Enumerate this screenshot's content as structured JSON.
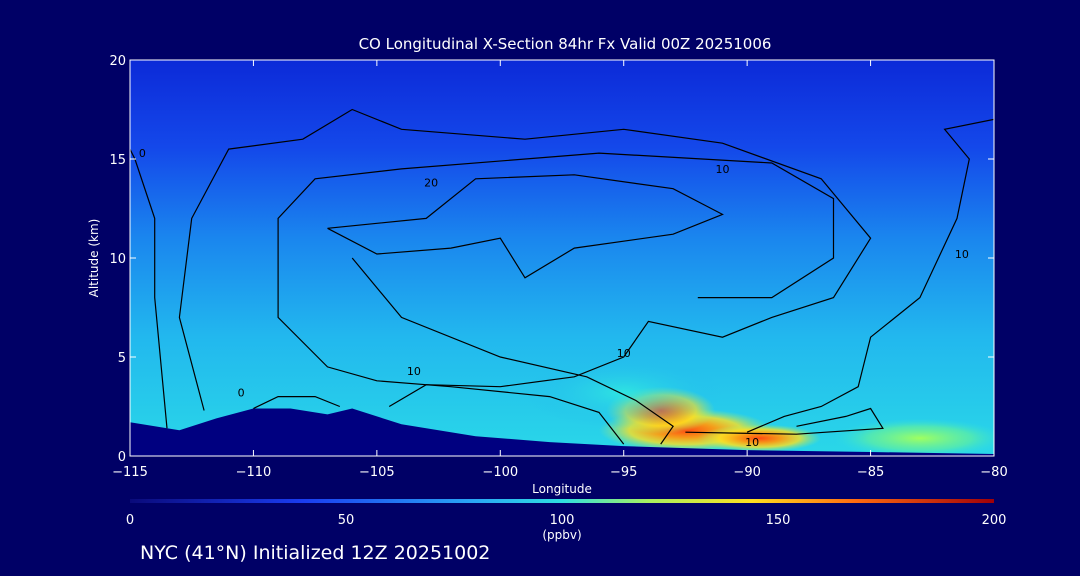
{
  "chart_data": {
    "type": "heatmap",
    "title": "CO Longitudinal X-Section 84hr  Fx Valid 00Z 20251006",
    "xlabel": "Longitude",
    "ylabel": "Altitude (km)",
    "xlim": [
      -115,
      -80
    ],
    "ylim": [
      0,
      20
    ],
    "xticks": [
      -115,
      -110,
      -105,
      -100,
      -95,
      -90,
      -85,
      -80
    ],
    "xtick_labels": [
      "−115",
      "−110",
      "−105",
      "−100",
      "−95",
      "−90",
      "−85",
      "−80"
    ],
    "yticks": [
      0,
      5,
      10,
      15,
      20
    ],
    "ytick_labels": [
      "0",
      "5",
      "10",
      "15",
      "20"
    ],
    "colorbar": {
      "label": "(ppbv)",
      "range": [
        0,
        200
      ],
      "ticks": [
        0,
        50,
        100,
        150,
        200
      ],
      "tick_labels": [
        "0",
        "50",
        "100",
        "150",
        "200"
      ]
    },
    "terrain_km": [
      [
        -115,
        1.7
      ],
      [
        -113,
        1.3
      ],
      [
        -111.5,
        1.9
      ],
      [
        -110,
        2.4
      ],
      [
        -108.5,
        2.4
      ],
      [
        -107,
        2.1
      ],
      [
        -106,
        2.4
      ],
      [
        -104,
        1.6
      ],
      [
        -101,
        1.0
      ],
      [
        -98,
        0.7
      ],
      [
        -95,
        0.5
      ],
      [
        -90,
        0.3
      ],
      [
        -85,
        0.2
      ],
      [
        -80,
        0.1
      ]
    ],
    "plumes": [
      {
        "lon": -92.5,
        "alt": 1.3,
        "value": 185,
        "rx": 3.5,
        "ry": 1.1
      },
      {
        "lon": -89.5,
        "alt": 0.9,
        "value": 175,
        "rx": 2.5,
        "ry": 0.7
      },
      {
        "lon": -93.5,
        "alt": 2.3,
        "value": 150,
        "rx": 2.2,
        "ry": 1.2
      },
      {
        "lon": -83,
        "alt": 0.9,
        "value": 115,
        "rx": 3.5,
        "ry": 1.0
      },
      {
        "lon": -95,
        "alt": 3.2,
        "value": 112,
        "rx": 4.0,
        "ry": 1.8
      }
    ],
    "contours": [
      {
        "label": "20",
        "points": [
          [
            -107,
            11.5
          ],
          [
            -103,
            12
          ],
          [
            -101,
            14
          ],
          [
            -97,
            14.2
          ],
          [
            -93,
            13.5
          ],
          [
            -91,
            12.2
          ],
          [
            -93,
            11.2
          ],
          [
            -97,
            10.5
          ],
          [
            -99,
            9
          ],
          [
            -100,
            11
          ],
          [
            -102,
            10.5
          ],
          [
            -105,
            10.2
          ],
          [
            -107,
            11.5
          ]
        ],
        "label_at": [
          -102.8,
          13.6
        ]
      },
      {
        "label": "10",
        "points": [
          [
            -112,
            2.3
          ],
          [
            -113,
            7
          ],
          [
            -112.5,
            12
          ],
          [
            -111,
            15.5
          ],
          [
            -108,
            16
          ],
          [
            -106,
            17.5
          ],
          [
            -104,
            16.5
          ],
          [
            -99,
            16
          ],
          [
            -95,
            16.5
          ],
          [
            -91,
            15.8
          ],
          [
            -87,
            14
          ],
          [
            -85,
            11
          ],
          [
            -86.5,
            8
          ],
          [
            -89,
            7
          ],
          [
            -91,
            6
          ],
          [
            -94,
            6.8
          ],
          [
            -95,
            5
          ],
          [
            -97,
            4
          ],
          [
            -100,
            3.5
          ],
          [
            -103,
            3.6
          ],
          [
            -104.5,
            2.5
          ]
        ],
        "label_at": [
          -103.5,
          4.1
        ]
      },
      {
        "label": "10",
        "points": [
          [
            -95,
            0.6
          ],
          [
            -96,
            2.2
          ],
          [
            -98,
            3
          ],
          [
            -102,
            3.5
          ],
          [
            -105,
            3.8
          ],
          [
            -107,
            4.5
          ],
          [
            -109,
            7
          ],
          [
            -109,
            12
          ],
          [
            -107.5,
            14
          ],
          [
            -104,
            14.5
          ],
          [
            -96,
            15.3
          ],
          [
            -89,
            14.8
          ],
          [
            -86.5,
            13
          ],
          [
            -86.5,
            10
          ],
          [
            -89,
            8
          ],
          [
            -92,
            8
          ]
        ],
        "label_at": [
          -91,
          14.3
        ]
      },
      {
        "label": "10",
        "points": [
          [
            -93.5,
            0.6
          ],
          [
            -93,
            1.5
          ],
          [
            -94.5,
            2.8
          ],
          [
            -96.5,
            4
          ],
          [
            -100,
            5
          ],
          [
            -104,
            7
          ],
          [
            -106,
            10
          ]
        ],
        "label_at": [
          -95,
          5
        ]
      },
      {
        "label": "0",
        "points": [
          [
            -113.5,
            1.4
          ],
          [
            -114,
            8
          ],
          [
            -114,
            12
          ],
          [
            -114.8,
            15
          ],
          [
            -115,
            15.5
          ]
        ],
        "label_at": [
          -114.5,
          15.1
        ]
      },
      {
        "label": "0",
        "points": [
          [
            -110,
            2.4
          ],
          [
            -109,
            3
          ],
          [
            -107.5,
            3
          ],
          [
            -106.5,
            2.5
          ]
        ],
        "label_at": [
          -110.5,
          3
        ]
      },
      {
        "label": "10",
        "points": [
          [
            -90,
            1.2
          ],
          [
            -88.5,
            2
          ],
          [
            -87,
            2.5
          ],
          [
            -85.5,
            3.5
          ],
          [
            -85,
            6
          ],
          [
            -83,
            8
          ],
          [
            -81.5,
            12
          ],
          [
            -81,
            15
          ],
          [
            -82,
            16.5
          ],
          [
            -80,
            17
          ]
        ],
        "label_at": [
          -81.3,
          10
        ]
      },
      {
        "label": "10",
        "points": [
          [
            -88,
            1.5
          ],
          [
            -86,
            2
          ],
          [
            -85,
            2.4
          ],
          [
            -84.5,
            1.4
          ],
          [
            -88,
            1.1
          ],
          [
            -92.5,
            1.2
          ]
        ],
        "label_at": [
          -89.8,
          0.5
        ]
      }
    ]
  },
  "footer": "NYC (41°N) Initialized 12Z 20251002"
}
